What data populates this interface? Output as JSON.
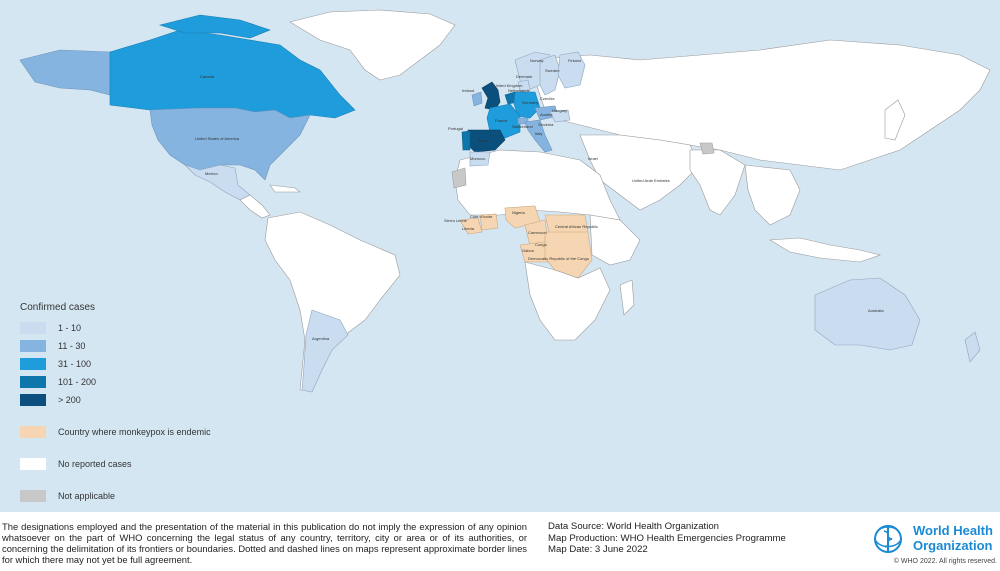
{
  "map": {
    "country_labels": {
      "canada": "Canada",
      "usa": "United States of America",
      "mexico": "Mexico",
      "argentina": "Argentina",
      "australia": "Australia",
      "uk": "United Kingdom",
      "ireland": "Ireland",
      "netherlands": "Netherlands",
      "denmark": "Denmark",
      "germany": "Germany",
      "france": "France",
      "spain": "Spain",
      "portugal": "Portugal",
      "norway": "Norway",
      "sweden": "Sweden",
      "finland": "Finland",
      "czechia": "Czechia",
      "hungary": "Hungary",
      "austria": "Austria",
      "switzerland": "Switzerland",
      "italy": "Italy",
      "slovenia": "Slovenia",
      "israel": "Israel",
      "uae": "United Arab Emirates",
      "morocco": "Morocco",
      "nigeria": "Nigeria",
      "cameroon": "Cameroon",
      "car": "Central African Republic",
      "congo": "Congo",
      "gabon": "Gabon",
      "drc": "Democratic Republic of the Congo",
      "sierra_leone": "Sierra Leone",
      "cote_divoire": "Côte d'Ivoire",
      "liberia": "Liberia"
    }
  },
  "legend": {
    "title": "Confirmed cases",
    "items": [
      {
        "label": "1 - 10",
        "color": "#c9dcf0"
      },
      {
        "label": "11 - 30",
        "color": "#86b4e0"
      },
      {
        "label": "31 - 100",
        "color": "#1f9cdb"
      },
      {
        "label": "101 - 200",
        "color": "#0f76ab"
      },
      {
        "label": "> 200",
        "color": "#0b4f7c"
      }
    ],
    "endemic": {
      "label": "Country where monkeypox is endemic",
      "color": "#f6d6b2"
    },
    "no_cases": {
      "label": "No reported cases",
      "color": "#ffffff"
    },
    "not_applicable": {
      "label": "Not applicable",
      "color": "#c8c8c8"
    }
  },
  "footer": {
    "disclaimer": "The designations employed and the presentation of the material in this publication do not imply the expression of any opinion whatsoever on the part of WHO concerning the legal status of any country, territory, city or area or of its authorities, or concerning the delimitation of its frontiers or boundaries. Dotted and dashed lines on maps represent approximate border lines for which there may not yet be full agreement.",
    "data_source": "Data Source: World Health Organization",
    "map_production": "Map Production: WHO Health Emergencies Programme",
    "map_date": "Map Date: 3 June 2022",
    "org_name_line1": "World Health",
    "org_name_line2": "Organization",
    "copyright": "© WHO 2022. All rights reserved."
  },
  "colors": {
    "ocean": "#d5e6f3",
    "who_blue": "#1a8ad4"
  }
}
